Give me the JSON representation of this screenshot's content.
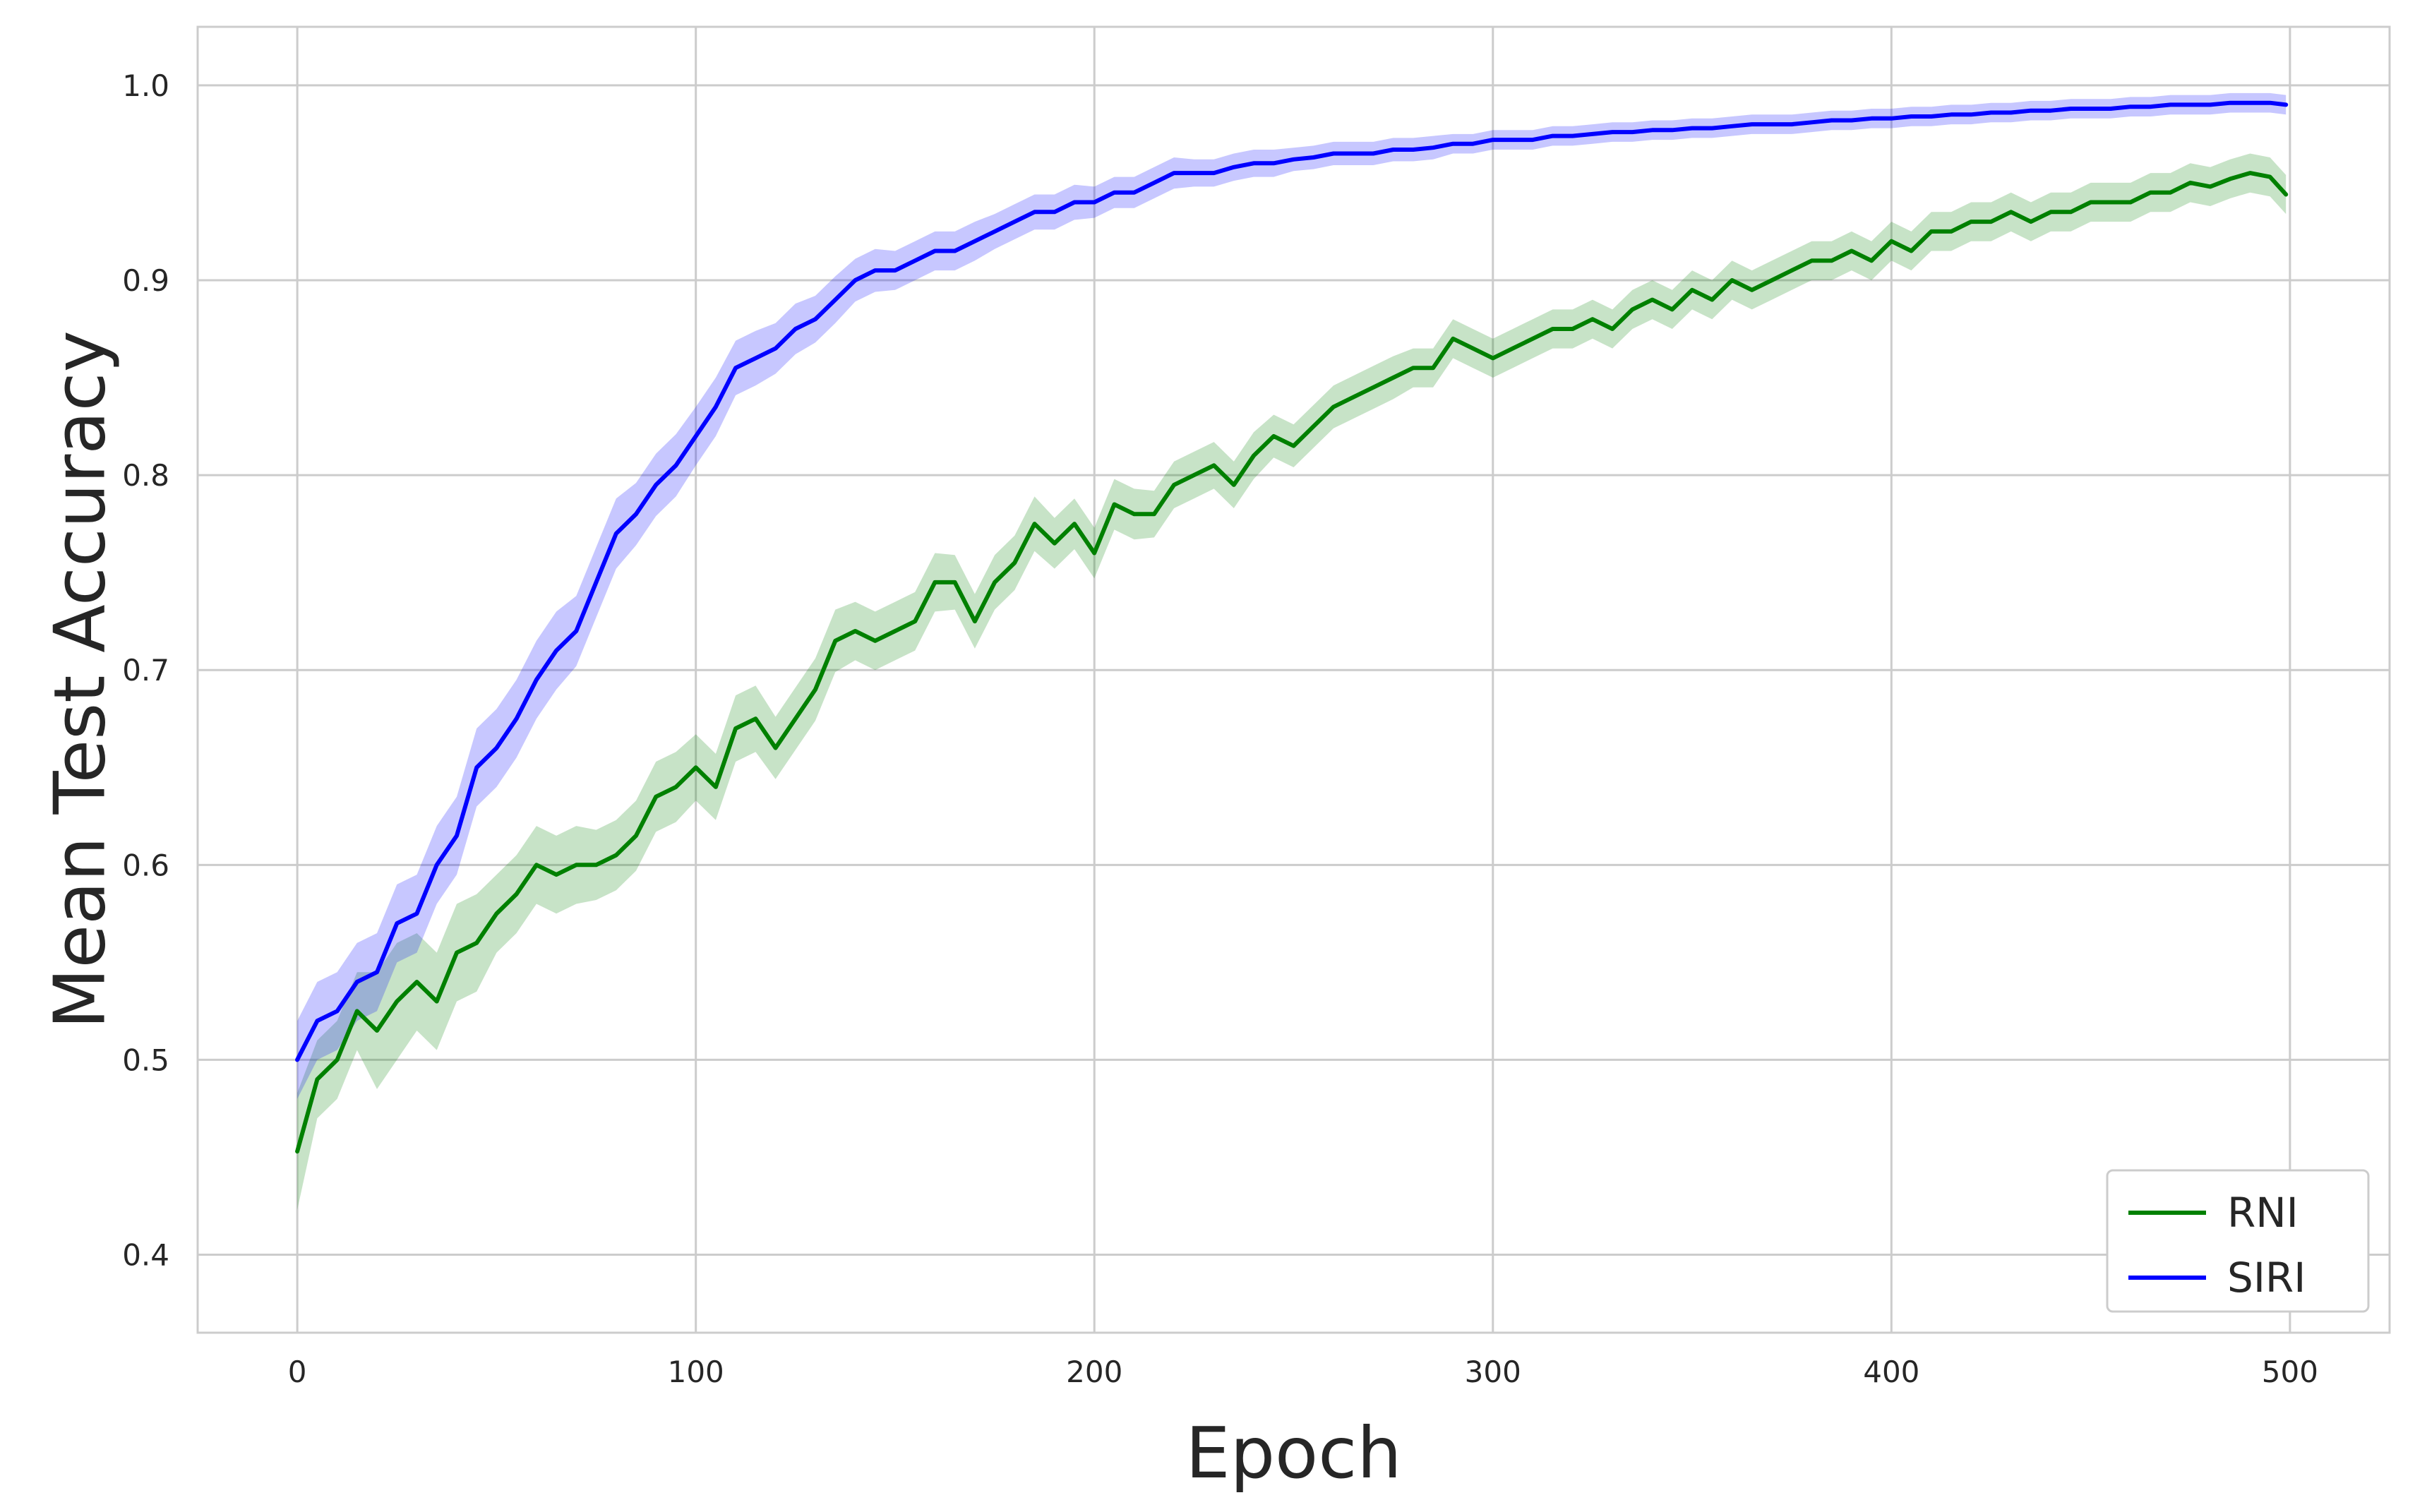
{
  "chart_data": {
    "type": "line",
    "title": "",
    "xlabel": "Epoch",
    "ylabel": "Mean Test Accuracy",
    "xlim": [
      -25,
      525
    ],
    "ylim": [
      0.36,
      1.03
    ],
    "xticks": [
      0,
      100,
      200,
      300,
      400,
      500
    ],
    "yticks": [
      0.4,
      0.5,
      0.6,
      0.7,
      0.8,
      0.9,
      1.0
    ],
    "xtick_labels": [
      "0",
      "100",
      "200",
      "300",
      "400",
      "500"
    ],
    "ytick_labels": [
      "0.4",
      "0.5",
      "0.6",
      "0.7",
      "0.8",
      "0.9",
      "1.0"
    ],
    "grid": true,
    "legend_position": "bottom-right",
    "series": [
      {
        "name": "RNI",
        "color": "#008000",
        "band_color": "#008000",
        "x": [
          0,
          5,
          10,
          15,
          20,
          25,
          30,
          35,
          40,
          45,
          50,
          55,
          60,
          65,
          70,
          75,
          80,
          85,
          90,
          95,
          100,
          105,
          110,
          115,
          120,
          125,
          130,
          135,
          140,
          145,
          150,
          155,
          160,
          165,
          170,
          175,
          180,
          185,
          190,
          195,
          200,
          205,
          210,
          215,
          220,
          225,
          230,
          235,
          240,
          245,
          250,
          255,
          260,
          265,
          270,
          275,
          280,
          285,
          290,
          295,
          300,
          305,
          310,
          315,
          320,
          325,
          330,
          335,
          340,
          345,
          350,
          355,
          360,
          365,
          370,
          375,
          380,
          385,
          390,
          395,
          400,
          405,
          410,
          415,
          420,
          425,
          430,
          435,
          440,
          445,
          450,
          455,
          460,
          465,
          470,
          475,
          480,
          485,
          490,
          495,
          499
        ],
        "values": [
          0.453,
          0.49,
          0.5,
          0.525,
          0.515,
          0.53,
          0.54,
          0.53,
          0.555,
          0.56,
          0.575,
          0.585,
          0.6,
          0.595,
          0.6,
          0.6,
          0.605,
          0.615,
          0.635,
          0.64,
          0.65,
          0.64,
          0.67,
          0.675,
          0.66,
          0.675,
          0.69,
          0.715,
          0.72,
          0.715,
          0.72,
          0.725,
          0.745,
          0.745,
          0.725,
          0.745,
          0.755,
          0.775,
          0.765,
          0.775,
          0.76,
          0.785,
          0.78,
          0.78,
          0.795,
          0.8,
          0.805,
          0.795,
          0.81,
          0.82,
          0.815,
          0.825,
          0.835,
          0.84,
          0.845,
          0.85,
          0.855,
          0.855,
          0.87,
          0.865,
          0.86,
          0.865,
          0.87,
          0.875,
          0.875,
          0.88,
          0.875,
          0.885,
          0.89,
          0.885,
          0.895,
          0.89,
          0.9,
          0.895,
          0.9,
          0.905,
          0.91,
          0.91,
          0.915,
          0.91,
          0.92,
          0.915,
          0.925,
          0.925,
          0.93,
          0.93,
          0.935,
          0.93,
          0.935,
          0.935,
          0.94,
          0.94,
          0.94,
          0.945,
          0.945,
          0.95,
          0.948,
          0.952,
          0.955,
          0.953,
          0.944
        ],
        "band_halfwidth": [
          0.03,
          0.02,
          0.02,
          0.02,
          0.03,
          0.03,
          0.025,
          0.025,
          0.025,
          0.025,
          0.02,
          0.02,
          0.02,
          0.02,
          0.02,
          0.018,
          0.018,
          0.018,
          0.018,
          0.018,
          0.017,
          0.017,
          0.017,
          0.017,
          0.016,
          0.016,
          0.016,
          0.016,
          0.015,
          0.015,
          0.015,
          0.015,
          0.015,
          0.014,
          0.014,
          0.014,
          0.014,
          0.014,
          0.013,
          0.013,
          0.013,
          0.013,
          0.013,
          0.012,
          0.012,
          0.012,
          0.012,
          0.012,
          0.012,
          0.011,
          0.011,
          0.011,
          0.011,
          0.011,
          0.011,
          0.011,
          0.01,
          0.01,
          0.01,
          0.01,
          0.01,
          0.01,
          0.01,
          0.01,
          0.01,
          0.01,
          0.01,
          0.01,
          0.01,
          0.01,
          0.01,
          0.01,
          0.01,
          0.01,
          0.01,
          0.01,
          0.01,
          0.01,
          0.01,
          0.01,
          0.01,
          0.01,
          0.01,
          0.01,
          0.01,
          0.01,
          0.01,
          0.01,
          0.01,
          0.01,
          0.01,
          0.01,
          0.01,
          0.01,
          0.01,
          0.01,
          0.01,
          0.01,
          0.01,
          0.01,
          0.01
        ]
      },
      {
        "name": "SIRI",
        "color": "#0000ff",
        "band_color": "#0000ff",
        "x": [
          0,
          5,
          10,
          15,
          20,
          25,
          30,
          35,
          40,
          45,
          50,
          55,
          60,
          65,
          70,
          75,
          80,
          85,
          90,
          95,
          100,
          105,
          110,
          115,
          120,
          125,
          130,
          135,
          140,
          145,
          150,
          155,
          160,
          165,
          170,
          175,
          180,
          185,
          190,
          195,
          200,
          205,
          210,
          215,
          220,
          225,
          230,
          235,
          240,
          245,
          250,
          255,
          260,
          265,
          270,
          275,
          280,
          285,
          290,
          295,
          300,
          305,
          310,
          315,
          320,
          325,
          330,
          335,
          340,
          345,
          350,
          355,
          360,
          365,
          370,
          375,
          380,
          385,
          390,
          395,
          400,
          405,
          410,
          415,
          420,
          425,
          430,
          435,
          440,
          445,
          450,
          455,
          460,
          465,
          470,
          475,
          480,
          485,
          490,
          495,
          499
        ],
        "values": [
          0.5,
          0.52,
          0.525,
          0.54,
          0.545,
          0.57,
          0.575,
          0.6,
          0.615,
          0.65,
          0.66,
          0.675,
          0.695,
          0.71,
          0.72,
          0.745,
          0.77,
          0.78,
          0.795,
          0.805,
          0.82,
          0.835,
          0.855,
          0.86,
          0.865,
          0.875,
          0.88,
          0.89,
          0.9,
          0.905,
          0.905,
          0.91,
          0.915,
          0.915,
          0.92,
          0.925,
          0.93,
          0.935,
          0.935,
          0.94,
          0.94,
          0.945,
          0.945,
          0.95,
          0.955,
          0.955,
          0.955,
          0.958,
          0.96,
          0.96,
          0.962,
          0.963,
          0.965,
          0.965,
          0.965,
          0.967,
          0.967,
          0.968,
          0.97,
          0.97,
          0.972,
          0.972,
          0.972,
          0.974,
          0.974,
          0.975,
          0.976,
          0.976,
          0.977,
          0.977,
          0.978,
          0.978,
          0.979,
          0.98,
          0.98,
          0.98,
          0.981,
          0.982,
          0.982,
          0.983,
          0.983,
          0.984,
          0.984,
          0.985,
          0.985,
          0.986,
          0.986,
          0.987,
          0.987,
          0.988,
          0.988,
          0.988,
          0.989,
          0.989,
          0.99,
          0.99,
          0.99,
          0.991,
          0.991,
          0.991,
          0.99
        ],
        "band_halfwidth": [
          0.02,
          0.02,
          0.02,
          0.02,
          0.02,
          0.02,
          0.02,
          0.02,
          0.02,
          0.02,
          0.02,
          0.02,
          0.02,
          0.02,
          0.018,
          0.018,
          0.018,
          0.016,
          0.016,
          0.016,
          0.015,
          0.015,
          0.014,
          0.014,
          0.013,
          0.013,
          0.012,
          0.012,
          0.011,
          0.011,
          0.01,
          0.01,
          0.01,
          0.01,
          0.01,
          0.009,
          0.009,
          0.009,
          0.009,
          0.009,
          0.008,
          0.008,
          0.008,
          0.008,
          0.008,
          0.007,
          0.007,
          0.007,
          0.007,
          0.007,
          0.006,
          0.006,
          0.006,
          0.006,
          0.006,
          0.006,
          0.006,
          0.006,
          0.005,
          0.005,
          0.005,
          0.005,
          0.005,
          0.005,
          0.005,
          0.005,
          0.005,
          0.005,
          0.005,
          0.005,
          0.005,
          0.005,
          0.005,
          0.005,
          0.005,
          0.005,
          0.005,
          0.005,
          0.005,
          0.005,
          0.005,
          0.005,
          0.005,
          0.005,
          0.005,
          0.005,
          0.005,
          0.005,
          0.005,
          0.005,
          0.005,
          0.005,
          0.005,
          0.005,
          0.005,
          0.005,
          0.005,
          0.005,
          0.005,
          0.005,
          0.005
        ]
      }
    ]
  }
}
